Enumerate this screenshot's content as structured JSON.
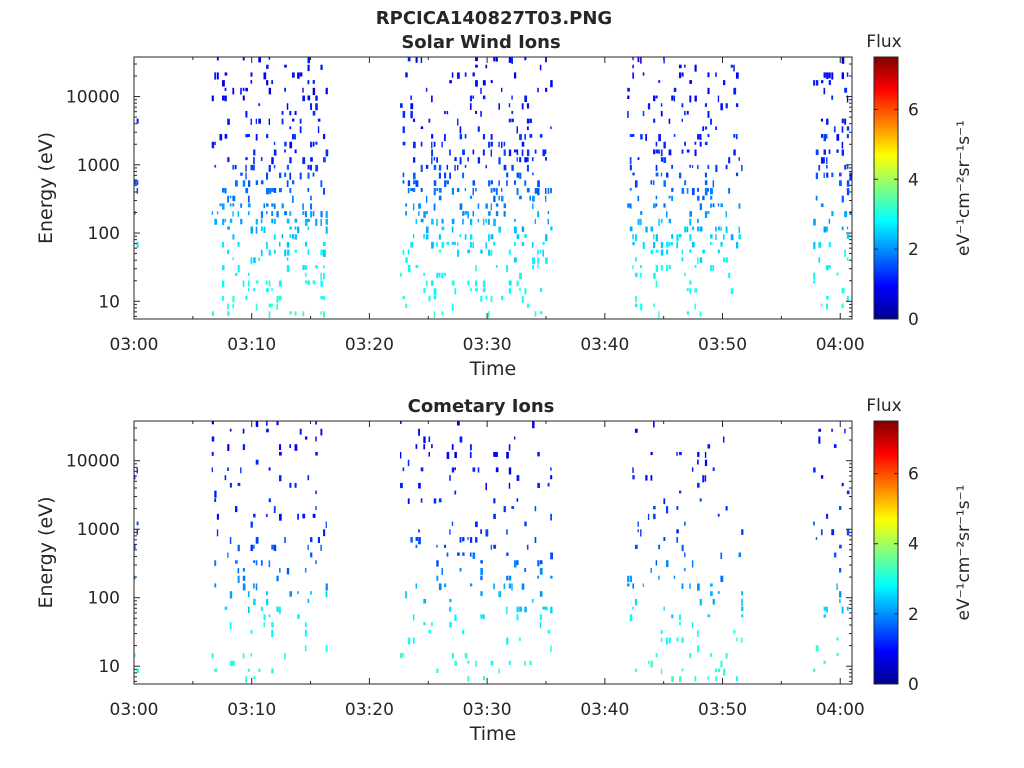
{
  "figure": {
    "title": "RPCICA140827T03.PNG"
  },
  "chart_data": [
    {
      "type": "heatmap",
      "title": "Solar Wind Ions",
      "xlabel": "Time",
      "ylabel": "Energy (eV)",
      "x_ticks": [
        "03:00",
        "03:10",
        "03:20",
        "03:30",
        "03:40",
        "03:50",
        "04:00"
      ],
      "xlim_minutes": [
        0,
        61
      ],
      "y_ticks": [
        "10",
        "100",
        "1000",
        "10000"
      ],
      "y_scale": "log",
      "ylim": [
        5.5,
        38000
      ],
      "colorbar": {
        "title": "Flux",
        "label": "eV⁻¹cm⁻²sr⁻¹s⁻¹",
        "ticks": [
          "0",
          "2",
          "4",
          "6"
        ],
        "range": [
          0,
          7.5
        ],
        "colormap": "jet"
      },
      "bursts_minutes": [
        [
          0,
          0.4
        ],
        [
          6.6,
          16.3
        ],
        [
          22.6,
          35.4
        ],
        [
          41.9,
          51.6
        ],
        [
          57.7,
          60.9
        ]
      ],
      "approx_flux_by_energy": {
        "10": 3.0,
        "30": 2.8,
        "100": 2.4,
        "250": 1.9,
        "1000": 1.3,
        "10000": 1.0,
        "30000": 0.9
      },
      "grid": false
    },
    {
      "type": "heatmap",
      "title": "Cometary Ions",
      "xlabel": "Time",
      "ylabel": "Energy (eV)",
      "x_ticks": [
        "03:00",
        "03:10",
        "03:20",
        "03:30",
        "03:40",
        "03:50",
        "04:00"
      ],
      "xlim_minutes": [
        0,
        61
      ],
      "y_ticks": [
        "10",
        "100",
        "1000",
        "10000"
      ],
      "y_scale": "log",
      "ylim": [
        5.5,
        38000
      ],
      "colorbar": {
        "title": "Flux",
        "label": "eV⁻¹cm⁻²sr⁻¹s⁻¹",
        "ticks": [
          "0",
          "2",
          "4",
          "6"
        ],
        "range": [
          0,
          7.5
        ],
        "colormap": "jet"
      },
      "bursts_minutes": [
        [
          0,
          0.4
        ],
        [
          6.6,
          16.3
        ],
        [
          22.6,
          35.4
        ],
        [
          41.9,
          51.6
        ],
        [
          57.7,
          60.9
        ]
      ],
      "approx_flux_by_energy": {
        "10": 3.1,
        "30": 2.9,
        "100": 2.3,
        "250": 1.8,
        "1000": 1.3,
        "10000": 1.0,
        "30000": 0.9
      },
      "grid": false
    }
  ]
}
